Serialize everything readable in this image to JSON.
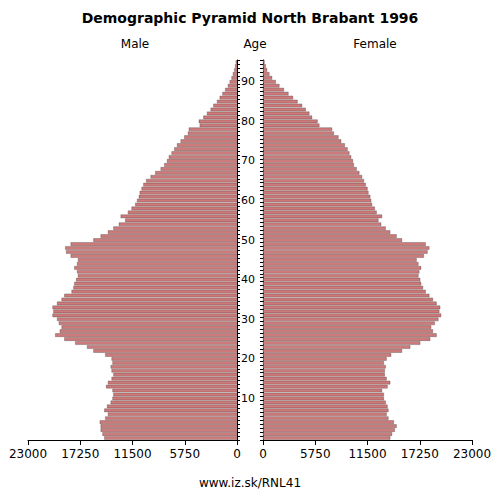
{
  "chart_data": {
    "type": "bar",
    "orientation": "horizontal",
    "title": "Demographic Pyramid North Brabant 1996",
    "y_label": "Age",
    "annotations": [
      "www.iz.sk/RNL41"
    ],
    "categories": [
      null,
      null,
      null,
      null,
      null,
      null,
      null,
      null,
      null,
      null,
      "10",
      null,
      null,
      null,
      null,
      null,
      null,
      null,
      null,
      null,
      "20",
      null,
      null,
      null,
      null,
      null,
      null,
      null,
      null,
      null,
      "30",
      null,
      null,
      null,
      null,
      null,
      null,
      null,
      null,
      null,
      "40",
      null,
      null,
      null,
      null,
      null,
      null,
      null,
      null,
      null,
      "50",
      null,
      null,
      null,
      null,
      null,
      null,
      null,
      null,
      null,
      "60",
      null,
      null,
      null,
      null,
      null,
      null,
      null,
      null,
      null,
      "70",
      null,
      null,
      null,
      null,
      null,
      null,
      null,
      null,
      null,
      "80",
      null,
      null,
      null,
      null,
      null,
      null,
      null,
      null,
      null,
      "90",
      null,
      null,
      null,
      null,
      null
    ],
    "series": [
      {
        "name": "Male",
        "color": "#cc7a7a",
        "values": [
          14600,
          14800,
          15000,
          15000,
          15100,
          14500,
          14200,
          14600,
          14300,
          13900,
          13700,
          13600,
          13700,
          14400,
          14200,
          13800,
          13600,
          13800,
          13900,
          13700,
          13800,
          14500,
          15800,
          16500,
          17800,
          19000,
          20000,
          19500,
          19300,
          19600,
          19800,
          20300,
          20200,
          20300,
          19800,
          19300,
          19000,
          18200,
          18000,
          17900,
          17700,
          17500,
          17600,
          17900,
          17600,
          17500,
          18300,
          18800,
          18900,
          18300,
          15800,
          15000,
          14200,
          13600,
          13000,
          12300,
          12800,
          12000,
          11600,
          11200,
          11000,
          10800,
          10700,
          10500,
          10300,
          10000,
          9500,
          9000,
          8400,
          8000,
          7700,
          7500,
          7200,
          6900,
          6600,
          6200,
          5800,
          5400,
          5300,
          4100,
          4200,
          3700,
          3300,
          2900,
          2600,
          2200,
          1900,
          1600,
          1300,
          1000,
          800,
          600,
          450,
          300,
          200,
          130
        ]
      },
      {
        "name": "Female",
        "color": "#cc7a7a",
        "values": [
          14000,
          14200,
          14500,
          14700,
          14400,
          13800,
          13600,
          13800,
          13700,
          13500,
          13300,
          13300,
          13100,
          13700,
          14000,
          13600,
          13400,
          13400,
          13500,
          13300,
          13600,
          14100,
          15300,
          16200,
          17300,
          18400,
          19100,
          18700,
          18500,
          18900,
          19300,
          19600,
          19400,
          19500,
          19100,
          18700,
          18300,
          17900,
          17600,
          17400,
          17300,
          17100,
          17200,
          17400,
          17100,
          16900,
          17700,
          18100,
          18300,
          17900,
          15300,
          14700,
          14000,
          13500,
          13000,
          12700,
          13100,
          12500,
          12300,
          12000,
          11900,
          11800,
          11600,
          11500,
          11300,
          11100,
          10900,
          10600,
          10300,
          10000,
          9900,
          9700,
          9500,
          9300,
          9000,
          8600,
          8300,
          7800,
          7600,
          6200,
          6000,
          5400,
          5100,
          4700,
          4300,
          3800,
          3300,
          2800,
          2300,
          1800,
          1400,
          1000,
          700,
          450,
          300,
          170
        ]
      }
    ],
    "xlim": [
      0,
      23000
    ],
    "xticks": [
      0,
      5750,
      11500,
      17250,
      23000
    ],
    "grid": false
  }
}
